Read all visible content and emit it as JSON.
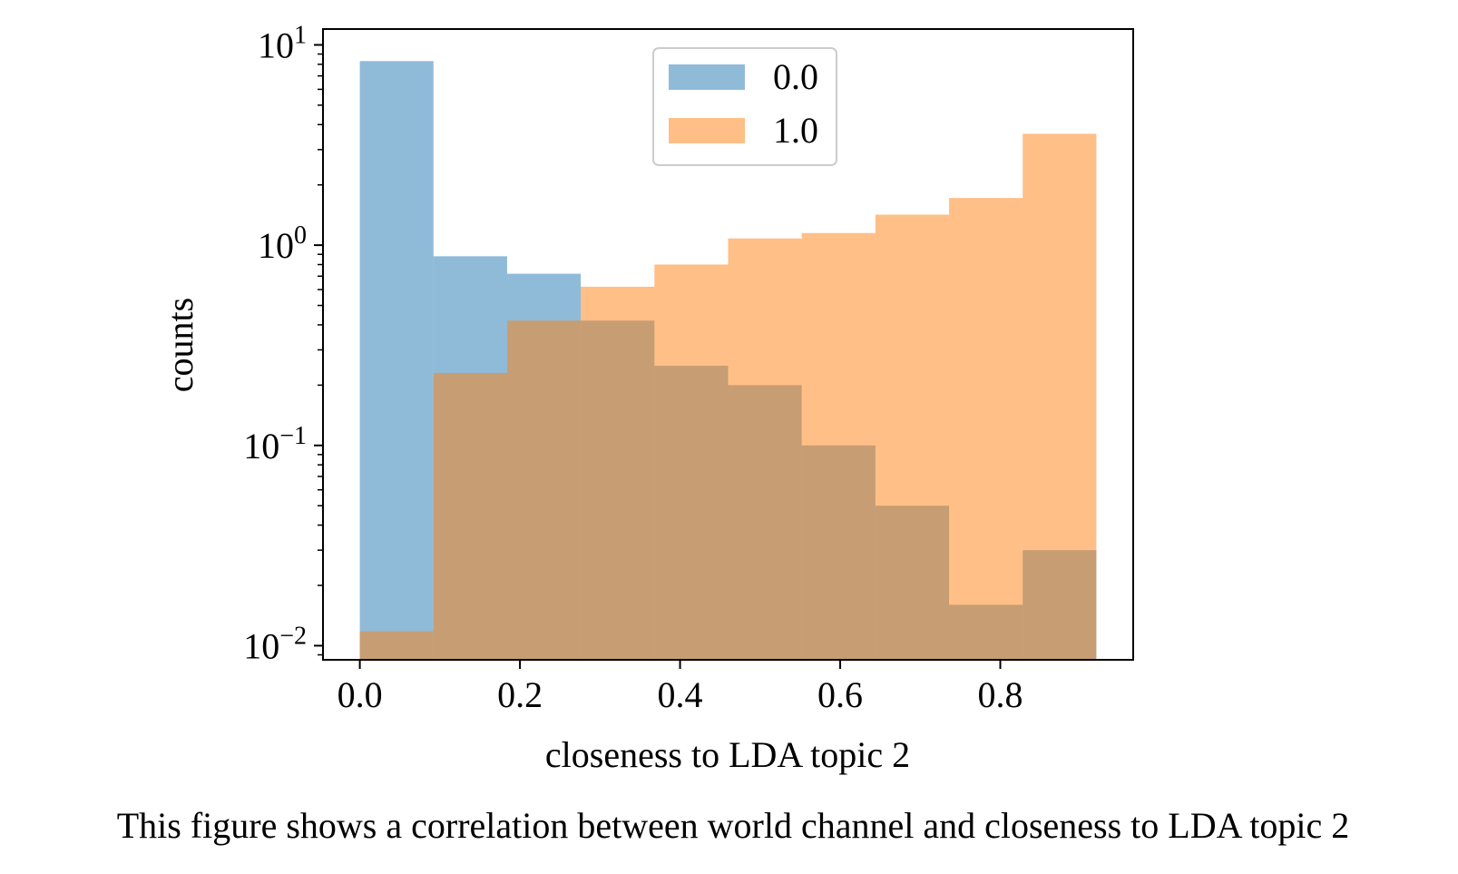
{
  "chart_data": {
    "type": "bar",
    "subtype": "histogram",
    "xlabel": "closeness to LDA topic 2",
    "ylabel": "counts",
    "yscale": "log",
    "xlim": [
      -0.046,
      0.966
    ],
    "ylim": [
      0.0085,
      12
    ],
    "bin_edges": [
      0.0,
      0.092,
      0.184,
      0.276,
      0.368,
      0.46,
      0.552,
      0.644,
      0.736,
      0.828,
      0.92
    ],
    "x_ticks": [
      {
        "value": 0.0,
        "label": "0.0"
      },
      {
        "value": 0.2,
        "label": "0.2"
      },
      {
        "value": 0.4,
        "label": "0.4"
      },
      {
        "value": 0.6,
        "label": "0.6"
      },
      {
        "value": 0.8,
        "label": "0.8"
      }
    ],
    "y_ticks": [
      {
        "value": 10,
        "base": "10",
        "exp": "1"
      },
      {
        "value": 1,
        "base": "10",
        "exp": "0"
      },
      {
        "value": 0.1,
        "base": "10",
        "exp": "−1"
      },
      {
        "value": 0.01,
        "base": "10",
        "exp": "−2"
      }
    ],
    "series": [
      {
        "name": "0.0",
        "color": "#1f77b4",
        "alpha": 0.5,
        "values": [
          8.3,
          0.88,
          0.72,
          0.42,
          0.25,
          0.2,
          0.1,
          0.05,
          0.016,
          0.03
        ]
      },
      {
        "name": "1.0",
        "color": "#ff7f0e",
        "alpha": 0.5,
        "values": [
          0.0118,
          0.23,
          0.42,
          0.62,
          0.8,
          1.08,
          1.15,
          1.42,
          1.72,
          3.6
        ]
      }
    ],
    "legend_position": "top-center",
    "grid": false
  },
  "caption": "This figure shows a correlation between world channel and closeness to LDA topic 2"
}
